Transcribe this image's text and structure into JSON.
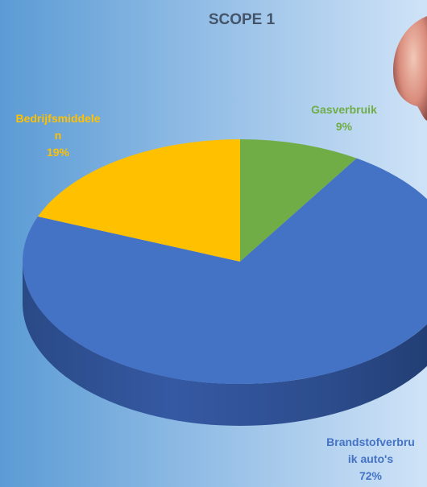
{
  "chart_data": {
    "type": "pie",
    "title": "SCOPE 1",
    "slices": [
      {
        "label_lines": [
          "Gasverbruik"
        ],
        "percent_label": "9%",
        "value": 9,
        "color": "#70ad47",
        "label_color": "#70ad47"
      },
      {
        "label_lines": [
          "Brandstofverbru",
          "ik auto's"
        ],
        "percent_label": "72%",
        "value": 72,
        "color": "#4472c4",
        "label_color": "#4472c4"
      },
      {
        "label_lines": [
          "Bedrijfsmiddele",
          "n"
        ],
        "percent_label": "19%",
        "value": 19,
        "color": "#ffc000",
        "label_color": "#ffc000"
      }
    ],
    "style": "3d-pie",
    "legend": "none",
    "data_labels": "outside"
  },
  "colors": {
    "background_left": "#5b9bd5",
    "background_right": "#cfe3f7",
    "title": "#44546a"
  }
}
